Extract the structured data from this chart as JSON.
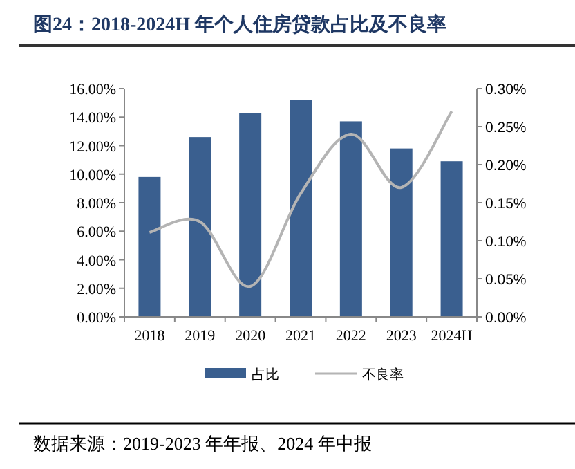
{
  "chart_data": {
    "type": "bar",
    "title": "图24：2018-2024H 年个人住房贷款占比及不良率",
    "categories": [
      "2018",
      "2019",
      "2020",
      "2021",
      "2022",
      "2023",
      "2024H"
    ],
    "series": [
      {
        "name": "占比",
        "color": "#3a5f8f",
        "values": [
          9.8,
          12.6,
          14.3,
          15.2,
          13.7,
          11.8,
          10.9
        ]
      },
      {
        "name": "不良率",
        "type": "line",
        "axis": "y2",
        "color": "#b4b4b4",
        "values": [
          0.111,
          0.125,
          0.04,
          0.162,
          0.24,
          0.17,
          0.27
        ]
      }
    ],
    "ylim": [
      0,
      16
    ],
    "yticks": [
      {
        "value": 0,
        "label": "0.00%"
      },
      {
        "value": 2,
        "label": "2.00%"
      },
      {
        "value": 4,
        "label": "4.00%"
      },
      {
        "value": 6,
        "label": "6.00%"
      },
      {
        "value": 8,
        "label": "8.00%"
      },
      {
        "value": 10,
        "label": "10.00%"
      },
      {
        "value": 12,
        "label": "12.00%"
      },
      {
        "value": 14,
        "label": "14.00%"
      },
      {
        "value": 16,
        "label": "16.00%"
      }
    ],
    "y2lim": [
      0,
      0.3
    ],
    "y2ticks": [
      {
        "value": 0,
        "label": "0.00%"
      },
      {
        "value": 0.05,
        "label": "0.05%"
      },
      {
        "value": 0.1,
        "label": "0.10%"
      },
      {
        "value": 0.15,
        "label": "0.15%"
      },
      {
        "value": 0.2,
        "label": "0.20%"
      },
      {
        "value": 0.25,
        "label": "0.25%"
      },
      {
        "value": 0.3,
        "label": "0.30%"
      }
    ],
    "grid": false,
    "legend": "bottom",
    "annotations": [
      "数据来源：2019-2023 年年报、2024 年中报"
    ]
  }
}
